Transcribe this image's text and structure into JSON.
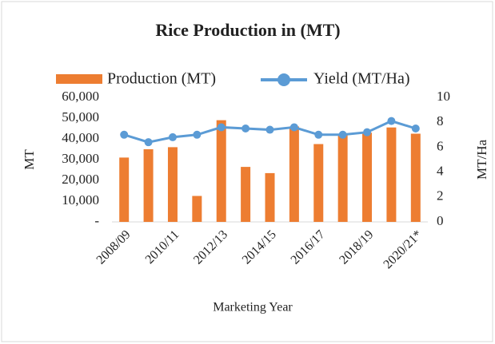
{
  "chart_data": {
    "type": "bar_line",
    "title": "Rice Production in (MT)",
    "x_label": "Marketing Year",
    "y_label": "MT",
    "y2_label": "MT/Ha",
    "categories": [
      "2008/09",
      null,
      "2010/11",
      null,
      "2012/13",
      null,
      "2014/15",
      null,
      "2016/17",
      null,
      "2018/19",
      null,
      "2020/21*"
    ],
    "series": [
      {
        "name": "Production (MT)",
        "color": "#ed7d31",
        "type": "bar",
        "values": [
          31000,
          35000,
          36000,
          12500,
          49000,
          26500,
          23500,
          46000,
          37500,
          42000,
          43000,
          45500,
          42500
        ]
      },
      {
        "name": "Yield (MT/Ha)",
        "color": "#5b9bd5",
        "type": "line",
        "axis": "y2",
        "values": [
          7.0,
          6.4,
          6.8,
          7.0,
          7.6,
          7.5,
          7.4,
          7.6,
          7.0,
          7.0,
          7.2,
          8.1,
          7.5
        ]
      }
    ],
    "ylim": [
      0,
      60000
    ],
    "yticks": [
      {
        "value": 0,
        "label": "-"
      },
      {
        "value": 10000,
        "label": "10,000"
      },
      {
        "value": 20000,
        "label": "20,000"
      },
      {
        "value": 30000,
        "label": "30,000"
      },
      {
        "value": 40000,
        "label": "40,000"
      },
      {
        "value": 50000,
        "label": "50,000"
      },
      {
        "value": 60000,
        "label": "60,000"
      }
    ],
    "y2lim": [
      0,
      10
    ],
    "y2ticks": [
      0,
      2,
      4,
      6,
      8,
      10
    ],
    "legend": "top",
    "grid": false
  }
}
